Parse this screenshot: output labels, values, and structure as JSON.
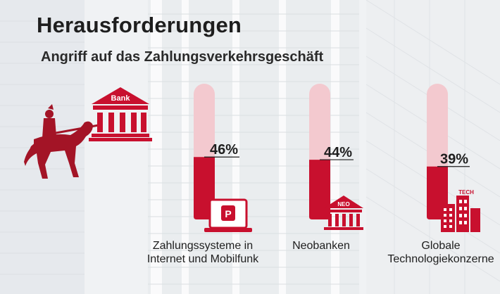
{
  "header": {
    "title": "Herausforderungen",
    "subtitle": "Angriff auf das Zahlungsverkehrsgeschäft"
  },
  "illustration": {
    "bank_label": "Bank",
    "icons": [
      "knight-on-horse-icon",
      "bank-building-icon"
    ]
  },
  "colors": {
    "accent": "#c8102e",
    "tube_light": "#f3c9cf",
    "text": "#1e1e1e"
  },
  "chart_data": {
    "type": "bar",
    "title": "",
    "categories": [
      "Zahlungssysteme in Internet und Mobilfunk",
      "Neobanken",
      "Globale Technologiekonzerne"
    ],
    "category_lines": [
      [
        "Zahlungssysteme in",
        "Internet und Mobilfunk"
      ],
      [
        "Neobanken"
      ],
      [
        "Globale",
        "Technologiekonzerne"
      ]
    ],
    "values": [
      46,
      44,
      39
    ],
    "value_labels": [
      "46%",
      "44%",
      "39%"
    ],
    "unit": "%",
    "ylim": [
      0,
      100
    ],
    "category_icons": [
      "laptop-payment-icon",
      "neo-bank-icon",
      "tech-buildings-icon"
    ],
    "icon_labels": [
      "P",
      "NEO",
      "TECH"
    ]
  }
}
